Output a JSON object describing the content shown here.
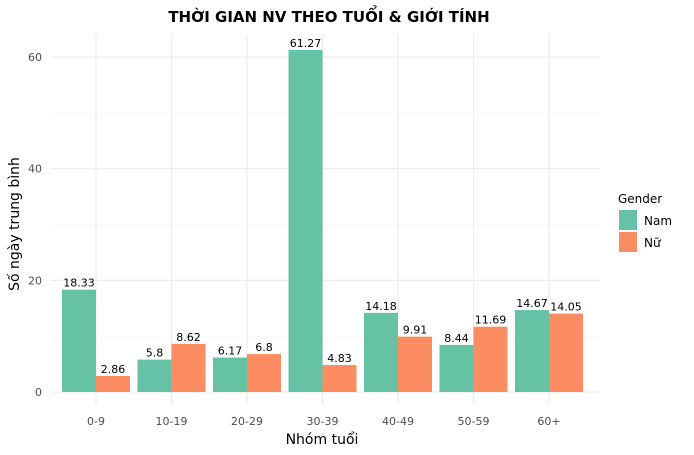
{
  "chart_data": {
    "type": "bar",
    "title": "THỜI GIAN NV THEO TUỔI & GIỚI TÍNH",
    "xlabel": "Nhóm tuổi",
    "ylabel": "Số ngày trung bình",
    "categories": [
      "0-9",
      "10-19",
      "20-29",
      "30-39",
      "40-49",
      "50-59",
      "60+"
    ],
    "series": [
      {
        "name": "Nam",
        "color": "#66c2a5",
        "values": [
          18.33,
          5.8,
          6.17,
          61.27,
          14.18,
          8.44,
          14.67
        ]
      },
      {
        "name": "Nữ",
        "color": "#fc8d62",
        "values": [
          2.86,
          8.62,
          6.8,
          4.83,
          9.91,
          11.69,
          14.05
        ]
      }
    ],
    "ylim": [
      0,
      64
    ],
    "yticks": [
      0,
      20,
      40,
      60
    ],
    "grid": true,
    "legend": {
      "title": "Gender",
      "position": "right"
    }
  }
}
